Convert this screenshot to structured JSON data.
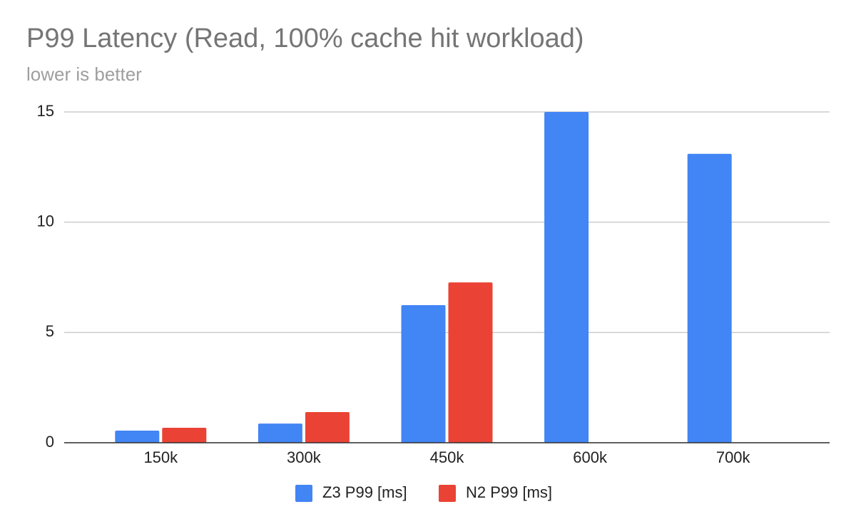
{
  "chart_data": {
    "type": "bar",
    "title": "P99 Latency (Read, 100% cache hit workload)",
    "subtitle": "lower is better",
    "categories": [
      "150k",
      "300k",
      "450k",
      "600k",
      "700k"
    ],
    "series": [
      {
        "name": "Z3 P99 [ms]",
        "color": "#4285f4",
        "values": [
          0.55,
          0.87,
          6.24,
          15,
          13.1
        ]
      },
      {
        "name": "N2 P99 [ms]",
        "color": "#ea4335",
        "values": [
          0.68,
          1.39,
          7.27,
          null,
          null
        ]
      }
    ],
    "ylim": [
      0,
      15
    ],
    "yticks": [
      0,
      5,
      10,
      15
    ],
    "grid": true
  }
}
